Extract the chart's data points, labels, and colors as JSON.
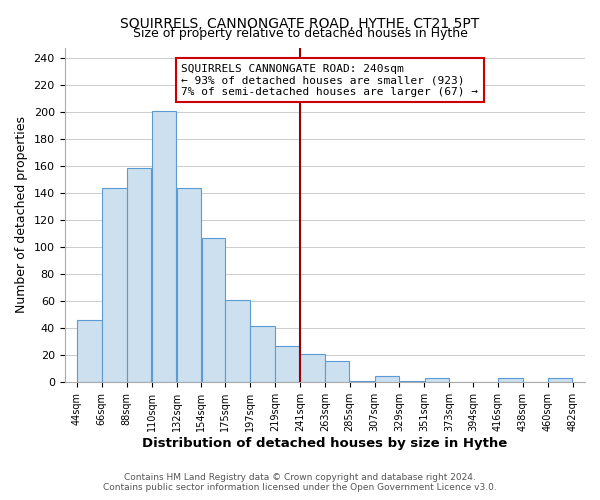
{
  "title": "SQUIRRELS, CANNONGATE ROAD, HYTHE, CT21 5PT",
  "subtitle": "Size of property relative to detached houses in Hythe",
  "xlabel": "Distribution of detached houses by size in Hythe",
  "ylabel": "Number of detached properties",
  "bar_left_edges": [
    44,
    66,
    88,
    110,
    132,
    154,
    175,
    197,
    219,
    241,
    263,
    285,
    307,
    329,
    351,
    373,
    394,
    416,
    438,
    460
  ],
  "bar_widths": [
    22,
    22,
    22,
    22,
    22,
    21,
    22,
    22,
    22,
    22,
    22,
    22,
    22,
    22,
    22,
    21,
    22,
    22,
    22,
    22
  ],
  "bar_heights": [
    46,
    144,
    159,
    201,
    144,
    107,
    61,
    42,
    27,
    21,
    16,
    1,
    5,
    1,
    3,
    0,
    0,
    3,
    0,
    3
  ],
  "bar_facecolor": "#cce0f0",
  "bar_edgecolor": "#5b9bd5",
  "grid_color": "#cccccc",
  "vline_x": 241,
  "vline_color": "#990000",
  "annotation_line1": "SQUIRRELS CANNONGATE ROAD: 240sqm",
  "annotation_line2": "← 93% of detached houses are smaller (923)",
  "annotation_line3": "7% of semi-detached houses are larger (67) →",
  "tick_labels": [
    "44sqm",
    "66sqm",
    "88sqm",
    "110sqm",
    "132sqm",
    "154sqm",
    "175sqm",
    "197sqm",
    "219sqm",
    "241sqm",
    "263sqm",
    "285sqm",
    "307sqm",
    "329sqm",
    "351sqm",
    "373sqm",
    "394sqm",
    "416sqm",
    "438sqm",
    "460sqm",
    "482sqm"
  ],
  "tick_positions": [
    44,
    66,
    88,
    110,
    132,
    154,
    175,
    197,
    219,
    241,
    263,
    285,
    307,
    329,
    351,
    373,
    394,
    416,
    438,
    460,
    482
  ],
  "ylim": [
    0,
    248
  ],
  "xlim": [
    33,
    493
  ],
  "yticks": [
    0,
    20,
    40,
    60,
    80,
    100,
    120,
    140,
    160,
    180,
    200,
    220,
    240
  ],
  "footer_line1": "Contains HM Land Registry data © Crown copyright and database right 2024.",
  "footer_line2": "Contains public sector information licensed under the Open Government Licence v3.0."
}
